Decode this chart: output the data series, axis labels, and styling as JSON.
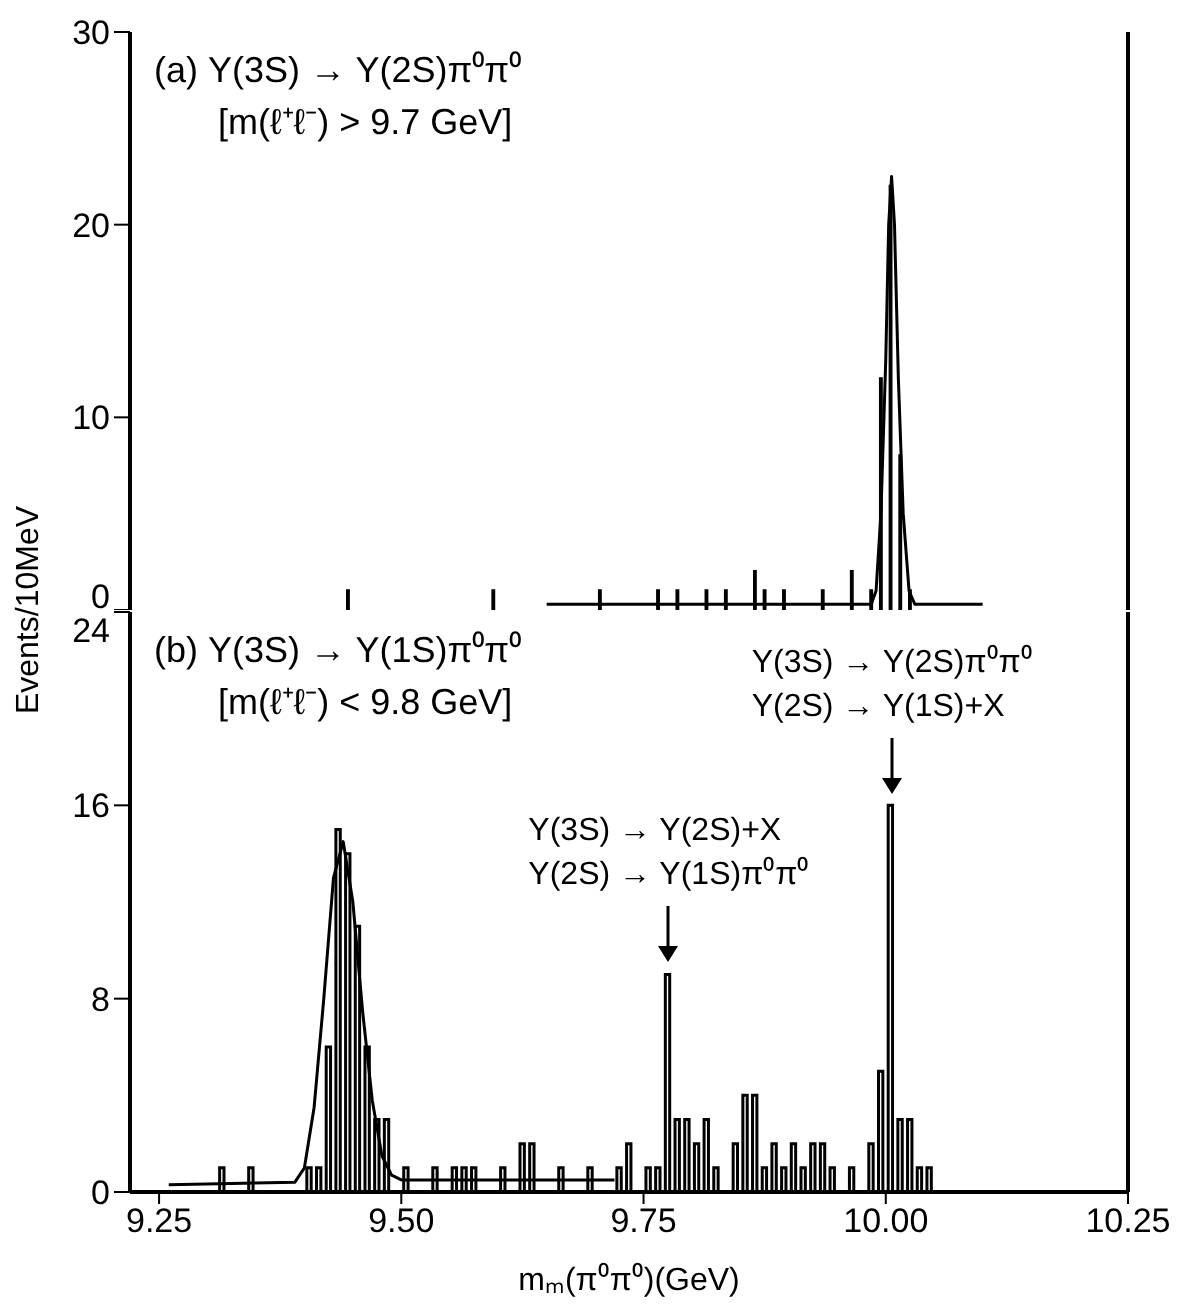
{
  "chart_data": [
    {
      "type": "histogram",
      "color": "#000000",
      "bins": [
        9.29,
        9.3,
        9.31,
        9.32,
        9.33,
        9.34,
        9.35,
        9.36,
        9.37,
        9.38,
        9.39,
        9.4,
        9.41,
        9.42,
        9.43,
        9.44,
        9.45,
        9.46,
        9.47,
        9.48,
        9.49,
        9.5,
        9.51,
        9.52,
        9.53,
        9.54,
        9.55,
        9.56,
        9.57,
        9.58,
        9.59,
        9.6,
        9.61,
        9.62,
        9.63,
        9.64,
        9.65,
        9.66,
        9.67,
        9.68,
        9.69,
        9.7,
        9.71,
        9.72,
        9.73,
        9.74,
        9.75,
        9.76,
        9.77,
        9.78,
        9.79,
        9.8,
        9.81,
        9.82,
        9.83,
        9.84,
        9.85,
        9.86,
        9.87,
        9.88,
        9.89,
        9.9,
        9.91,
        9.92,
        9.93,
        9.94,
        9.95,
        9.96,
        9.97,
        9.98,
        9.99,
        10,
        10.01,
        10.02,
        10.03,
        10.04,
        10.05,
        10.06,
        10.07
      ],
      "values": [
        0,
        0,
        0,
        0,
        0,
        0,
        0,
        0,
        0,
        0,
        0,
        0,
        0,
        0,
        0,
        1,
        0,
        0,
        0,
        0,
        0,
        0,
        0,
        0,
        0,
        0,
        0,
        0,
        0,
        0,
        1,
        0,
        0,
        0,
        0,
        0,
        0,
        0,
        0,
        0,
        0,
        1,
        0,
        0,
        0,
        0,
        0,
        1,
        0,
        1,
        0,
        0,
        1,
        0,
        1,
        0,
        0,
        2,
        1,
        0,
        1,
        0,
        0,
        0,
        1,
        0,
        0,
        2,
        0,
        1,
        12,
        22,
        8,
        1,
        0,
        0,
        0,
        0
      ],
      "series": [
        {
          "type": "line",
          "color": "#000000",
          "x": [
            9.65,
            9.985,
            9.99,
            9.995,
            10.0,
            10.003,
            10.006,
            10.009,
            10.013,
            10.018,
            10.024,
            10.03,
            10.1
          ],
          "values": [
            0.3,
            0.3,
            1,
            5,
            13,
            20,
            22.5,
            20,
            12,
            5,
            1,
            0.3,
            0.3
          ]
        }
      ],
      "xlim": [
        9.22,
        10.25
      ],
      "xticks": [
        9.25,
        9.5,
        9.75,
        10,
        10.25
      ],
      "ylim": [
        0,
        30
      ],
      "yticks": [
        0,
        10,
        20,
        30
      ],
      "tick_labels": "y",
      "grid": false,
      "legend": false,
      "annotations": [
        "(a) Υ(3S) → Υ(2S)π⁰π⁰",
        "[m(ℓ⁺ℓ⁻) > 9.7 GeV]"
      ]
    },
    {
      "type": "histogram",
      "color": "#000000",
      "bins": [
        9.29,
        9.3,
        9.31,
        9.32,
        9.33,
        9.34,
        9.35,
        9.36,
        9.37,
        9.38,
        9.39,
        9.4,
        9.41,
        9.42,
        9.43,
        9.44,
        9.45,
        9.46,
        9.47,
        9.48,
        9.49,
        9.5,
        9.51,
        9.52,
        9.53,
        9.54,
        9.55,
        9.56,
        9.57,
        9.58,
        9.59,
        9.6,
        9.61,
        9.62,
        9.63,
        9.64,
        9.65,
        9.66,
        9.67,
        9.68,
        9.69,
        9.7,
        9.71,
        9.72,
        9.73,
        9.74,
        9.75,
        9.76,
        9.77,
        9.78,
        9.79,
        9.8,
        9.81,
        9.82,
        9.83,
        9.84,
        9.85,
        9.86,
        9.87,
        9.88,
        9.89,
        9.9,
        9.91,
        9.92,
        9.93,
        9.94,
        9.95,
        9.96,
        9.97,
        9.98,
        9.99,
        10,
        10.01,
        10.02,
        10.03,
        10.04,
        10.05,
        10.06,
        10.07
      ],
      "values": [
        0,
        0,
        1,
        0,
        0,
        1,
        0,
        0,
        0,
        0,
        0,
        1,
        1,
        6,
        15,
        14,
        11,
        6,
        3,
        3,
        0,
        1,
        0,
        0,
        1,
        0,
        1,
        1,
        1,
        0,
        0,
        1,
        0,
        2,
        2,
        0,
        0,
        1,
        0,
        0,
        1,
        0,
        0,
        1,
        2,
        0,
        1,
        1,
        9,
        3,
        3,
        2,
        3,
        1,
        0,
        2,
        4,
        4,
        1,
        2,
        1,
        2,
        1,
        2,
        2,
        1,
        0,
        1,
        0,
        2,
        5,
        16,
        3,
        3,
        1,
        1,
        0,
        0
      ],
      "series": [
        {
          "type": "line",
          "color": "#000000",
          "x": [
            9.26,
            9.39,
            9.4,
            9.41,
            9.42,
            9.43,
            9.44,
            9.45,
            9.46,
            9.47,
            9.48,
            9.49,
            9.5,
            9.72
          ],
          "values": [
            0.3,
            0.4,
            1,
            3.5,
            8,
            13,
            14.5,
            12,
            7.5,
            3.8,
            1.5,
            0.7,
            0.5,
            0.5
          ]
        }
      ],
      "xlim": [
        9.22,
        10.25
      ],
      "ylim": [
        0,
        24
      ],
      "yticks": [
        0,
        8,
        16,
        24
      ],
      "grid": false,
      "legend": false,
      "xticks": [
        9.25,
        {
          "value": 9.5,
          "label": "9.50"
        },
        9.75,
        {
          "value": 10,
          "label": "10.00"
        },
        10.25
      ],
      "xlabel": "mₘ(π⁰π⁰)(GeV)",
      "ylabel": "Events/10MeV",
      "annotations": [
        "(b) Υ(3S) → Υ(1S)π⁰π⁰",
        "[m(ℓ⁺ℓ⁻) < 9.8 GeV]",
        {
          "text": "Υ(3S) → Υ(2S)+X\nΥ(2S) → Υ(1S)π⁰π⁰",
          "x": 9.775,
          "y": 9
        },
        {
          "text": "Υ(3S) → Υ(2S)π⁰π⁰\nΥ(2S) → Υ(1S)+X",
          "x": 10.005,
          "y": 16
        }
      ]
    }
  ]
}
